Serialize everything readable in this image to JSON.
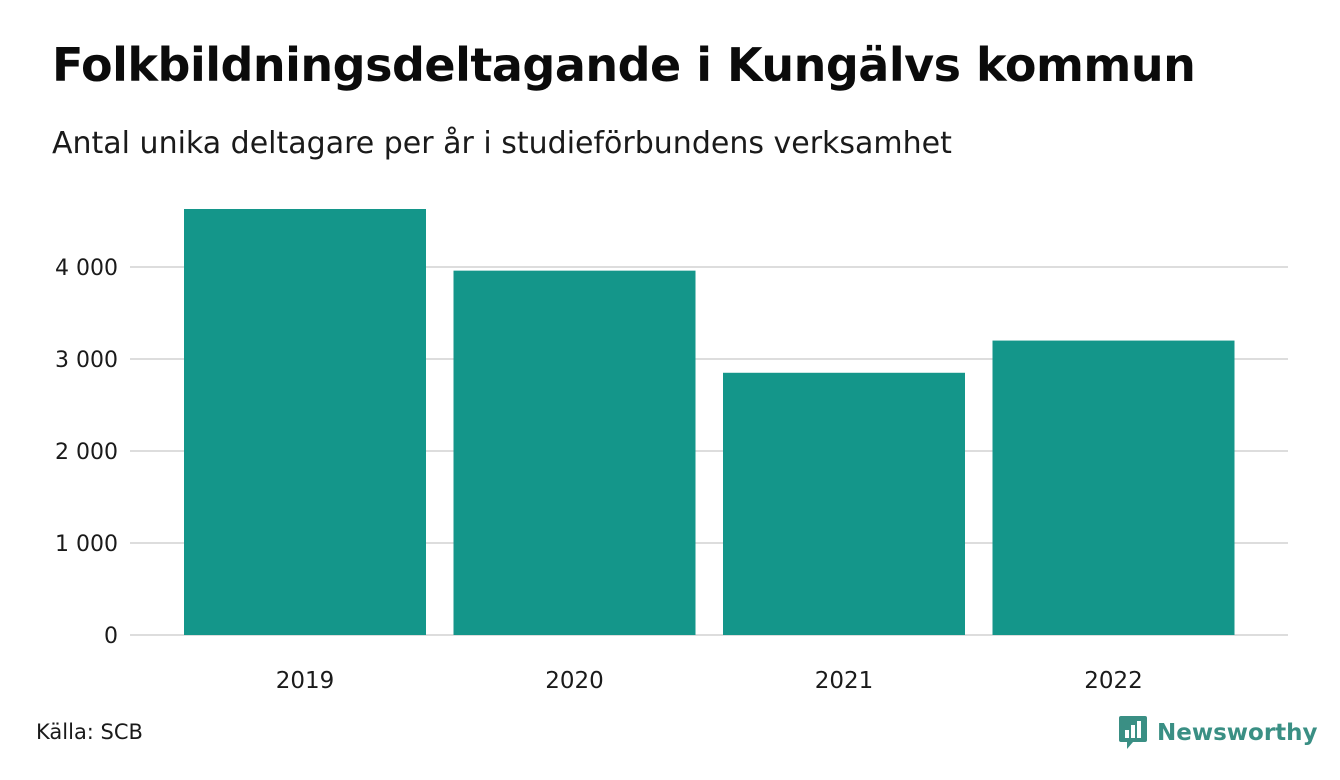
{
  "title": "Folkbildningsdeltagande i Kungälvs kommun",
  "subtitle": "Antal unika deltagare per år i studieförbundens verksamhet",
  "source": "Källa: SCB",
  "brand": "Newsworthy",
  "colors": {
    "bar": "#14968a",
    "grid": "#dddddd",
    "brand": "#3a8f84",
    "text": "#1a1a1a"
  },
  "chart_data": {
    "type": "bar",
    "title": "Folkbildningsdeltagande i Kungälvs kommun",
    "subtitle": "Antal unika deltagare per år i studieförbundens verksamhet",
    "categories": [
      "2019",
      "2020",
      "2021",
      "2022"
    ],
    "values": [
      4630,
      3960,
      2850,
      3200
    ],
    "xlabel": "",
    "ylabel": "",
    "ylim": [
      0,
      4630
    ],
    "yticks": [
      0,
      1000,
      2000,
      3000,
      4000
    ],
    "ytick_labels": [
      "0",
      "1 000",
      "2 000",
      "3 000",
      "4 000"
    ],
    "grid": true,
    "legend": "none"
  }
}
